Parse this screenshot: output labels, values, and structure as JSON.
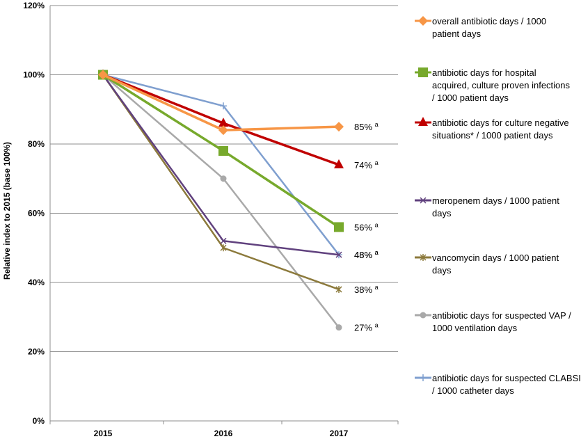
{
  "chart_data": {
    "type": "line",
    "title": "",
    "xlabel": "",
    "ylabel": "Relative index to 2015 (base 100%)",
    "x": [
      "2015",
      "2016",
      "2017"
    ],
    "ylim": [
      0,
      120
    ],
    "yticks": [
      "0%",
      "20%",
      "40%",
      "60%",
      "80%",
      "100%",
      "120%"
    ],
    "grid": true,
    "legend_position": "right",
    "end_label_suffix": "a",
    "series": [
      {
        "name": "overall antibiotic days / 1000 patient days",
        "legend_lines": [
          "overall antibiotic days / 1000",
          "patient days"
        ],
        "color": "#F79646",
        "marker": "diamond",
        "values": [
          100,
          84,
          85
        ],
        "end_label": "85%"
      },
      {
        "name": "antibiotic days for hospital acquired, culture proven infections / 1000 patient days",
        "legend_lines": [
          "antibiotic days for hospital",
          "acquired, culture proven infections",
          "/ 1000 patient days"
        ],
        "color": "#77A92C",
        "marker": "square",
        "values": [
          100,
          78,
          56
        ],
        "end_label": "56%"
      },
      {
        "name": "antibiotic days for culture negative situations* / 1000 patient days",
        "legend_lines": [
          "antibiotic days for culture negative",
          "situations* / 1000 patient days"
        ],
        "color": "#C00000",
        "marker": "triangle",
        "values": [
          100,
          86,
          74
        ],
        "end_label": "74%"
      },
      {
        "name": "meropenem days / 1000 patient days",
        "legend_lines": [
          "meropenem days / 1000 patient",
          "days"
        ],
        "color": "#60417E",
        "marker": "x",
        "values": [
          100,
          52,
          48
        ],
        "end_label": "48%"
      },
      {
        "name": "vancomycin days / 1000 patient days",
        "legend_lines": [
          "vancomycin days / 1000 patient",
          "days"
        ],
        "color": "#8C7A3C",
        "marker": "star",
        "values": [
          100,
          50,
          38
        ],
        "end_label": "38%"
      },
      {
        "name": "antibiotic days for suspected VAP / 1000 ventilation days",
        "legend_lines": [
          "antibiotic days for suspected VAP /",
          "1000 ventilation days"
        ],
        "color": "#A9A9A9",
        "marker": "circle",
        "values": [
          100,
          70,
          27
        ],
        "end_label": "27%"
      },
      {
        "name": "antibiotic days for suspected CLABSI / 1000 catheter days",
        "legend_lines": [
          "antibiotic days for suspected CLABSI",
          "/ 1000 catheter days"
        ],
        "color": "#7F9FCF",
        "marker": "plus",
        "values": [
          100,
          91,
          48
        ],
        "end_label": "48%"
      }
    ]
  }
}
